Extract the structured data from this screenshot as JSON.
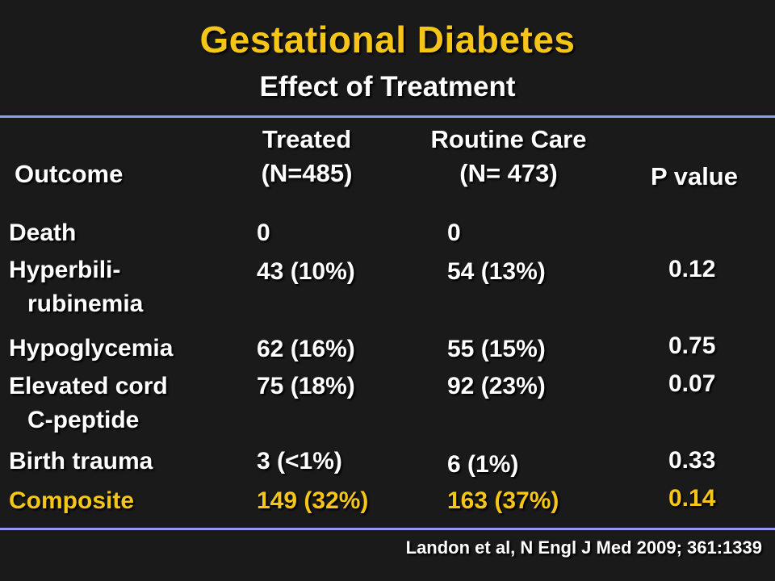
{
  "title": "Gestational Diabetes",
  "subtitle": "Effect of Treatment",
  "columns": {
    "outcome": "Outcome",
    "treated": [
      "Treated",
      "(N=485)"
    ],
    "routine": [
      "Routine Care",
      "(N= 473)"
    ],
    "pvalue": "P value"
  },
  "rows": [
    {
      "outcome": [
        "Death"
      ],
      "treated": "0",
      "routine": "0",
      "pvalue": ""
    },
    {
      "outcome": [
        "Hyperbili-",
        "rubinemia"
      ],
      "treated": "43 (10%)",
      "routine": "54 (13%)",
      "pvalue": "0.12"
    },
    {
      "outcome": [
        "Hypoglycemia"
      ],
      "treated": "62 (16%)",
      "routine": "55 (15%)",
      "pvalue": "0.75"
    },
    {
      "outcome": [
        "Elevated cord",
        "C-peptide"
      ],
      "treated": "75 (18%)",
      "routine": "92 (23%)",
      "pvalue": "0.07"
    },
    {
      "outcome": [
        "Birth trauma"
      ],
      "treated": "3 (<1%)",
      "routine": "6 (1%)",
      "pvalue": "0.33"
    },
    {
      "outcome": [
        "Composite"
      ],
      "treated": "149 (32%)",
      "routine": "163 (37%)",
      "pvalue": "0.14"
    }
  ],
  "citation": "Landon et al, N Engl J Med 2009; 361:1339",
  "colors": {
    "accent": "#f5c518",
    "rule": "#8f9cf0",
    "background": "#1a1a1a",
    "text": "#ffffff"
  }
}
